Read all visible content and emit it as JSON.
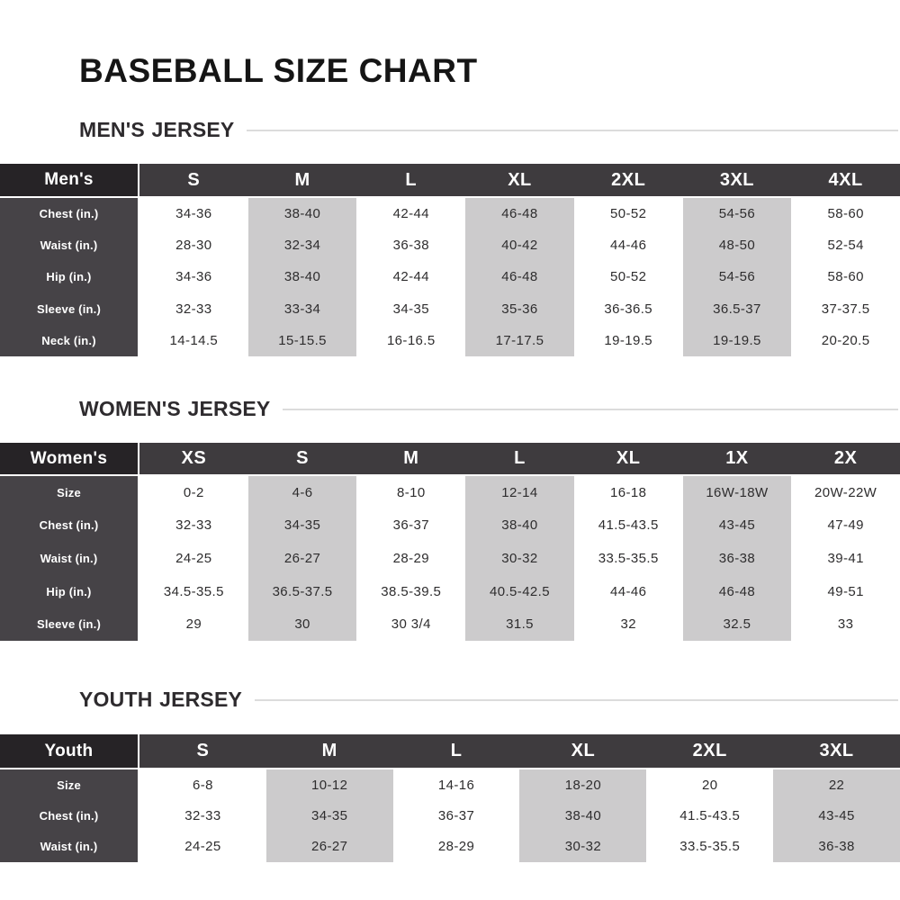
{
  "page": {
    "title": "BASEBALL SIZE CHART"
  },
  "colors": {
    "corner_cell_bg": "#262326",
    "header_row_bg": "#3e3b3e",
    "label_column_bg": "#464347",
    "shaded_column_bg": "#cccbcc",
    "heading_rule": "#dcdcdc",
    "data_text": "#2e2d2e",
    "title_text": "#151515"
  },
  "sections": [
    {
      "heading": "MEN'S JERSEY",
      "corner": "Men's",
      "sizes": [
        "S",
        "M",
        "L",
        "XL",
        "2XL",
        "3XL",
        "4XL"
      ],
      "shaded_columns": [
        1,
        3,
        5
      ],
      "rows": [
        {
          "label": "Chest (in.)",
          "values": [
            "34-36",
            "38-40",
            "42-44",
            "46-48",
            "50-52",
            "54-56",
            "58-60"
          ]
        },
        {
          "label": "Waist (in.)",
          "values": [
            "28-30",
            "32-34",
            "36-38",
            "40-42",
            "44-46",
            "48-50",
            "52-54"
          ]
        },
        {
          "label": "Hip (in.)",
          "values": [
            "34-36",
            "38-40",
            "42-44",
            "46-48",
            "50-52",
            "54-56",
            "58-60"
          ]
        },
        {
          "label": "Sleeve (in.)",
          "values": [
            "32-33",
            "33-34",
            "34-35",
            "35-36",
            "36-36.5",
            "36.5-37",
            "37-37.5"
          ]
        },
        {
          "label": "Neck (in.)",
          "values": [
            "14-14.5",
            "15-15.5",
            "16-16.5",
            "17-17.5",
            "19-19.5",
            "19-19.5",
            "20-20.5"
          ]
        }
      ]
    },
    {
      "heading": "WOMEN'S JERSEY",
      "corner": "Women's",
      "sizes": [
        "XS",
        "S",
        "M",
        "L",
        "XL",
        "1X",
        "2X"
      ],
      "shaded_columns": [
        1,
        3,
        5
      ],
      "rows": [
        {
          "label": "Size",
          "values": [
            "0-2",
            "4-6",
            "8-10",
            "12-14",
            "16-18",
            "16W-18W",
            "20W-22W"
          ]
        },
        {
          "label": "Chest (in.)",
          "values": [
            "32-33",
            "34-35",
            "36-37",
            "38-40",
            "41.5-43.5",
            "43-45",
            "47-49"
          ]
        },
        {
          "label": "Waist (in.)",
          "values": [
            "24-25",
            "26-27",
            "28-29",
            "30-32",
            "33.5-35.5",
            "36-38",
            "39-41"
          ]
        },
        {
          "label": "Hip (in.)",
          "values": [
            "34.5-35.5",
            "36.5-37.5",
            "38.5-39.5",
            "40.5-42.5",
            "44-46",
            "46-48",
            "49-51"
          ]
        },
        {
          "label": "Sleeve (in.)",
          "values": [
            "29",
            "30",
            "30 3/4",
            "31.5",
            "32",
            "32.5",
            "33"
          ]
        }
      ]
    },
    {
      "heading": "YOUTH JERSEY",
      "corner": "Youth",
      "sizes": [
        "S",
        "M",
        "L",
        "XL",
        "2XL",
        "3XL"
      ],
      "shaded_columns": [
        1,
        3,
        5
      ],
      "rows": [
        {
          "label": "Size",
          "values": [
            "6-8",
            "10-12",
            "14-16",
            "18-20",
            "20",
            "22"
          ]
        },
        {
          "label": "Chest (in.)",
          "values": [
            "32-33",
            "34-35",
            "36-37",
            "38-40",
            "41.5-43.5",
            "43-45"
          ]
        },
        {
          "label": "Waist (in.)",
          "values": [
            "24-25",
            "26-27",
            "28-29",
            "30-32",
            "33.5-35.5",
            "36-38"
          ]
        }
      ]
    }
  ]
}
